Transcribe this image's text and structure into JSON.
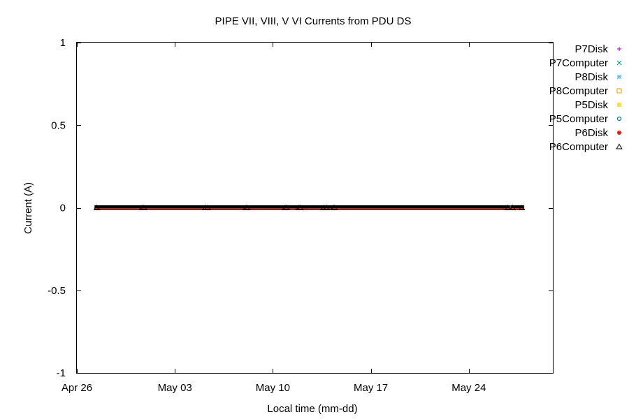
{
  "chart_data": {
    "type": "scatter",
    "title": "PIPE VII, VIII, V   VI Currents from PDU    DS",
    "xlabel": "Local time (mm-dd)",
    "ylabel": "Current (A)",
    "xlim": [
      "2015-04-26",
      "2015-05-30"
    ],
    "ylim": [
      -1,
      1
    ],
    "x_ticks": [
      {
        "date": "2015-04-26",
        "label": "Apr 26"
      },
      {
        "date": "2015-05-03",
        "label": "May 03"
      },
      {
        "date": "2015-05-10",
        "label": "May 10"
      },
      {
        "date": "2015-05-17",
        "label": "May 17"
      },
      {
        "date": "2015-05-24",
        "label": "May 24"
      }
    ],
    "y_ticks": [
      {
        "value": 1,
        "label": "1"
      },
      {
        "value": 0.5,
        "label": "0.5"
      },
      {
        "value": 0,
        "label": "0"
      },
      {
        "value": -0.5,
        "label": "-0.5"
      },
      {
        "value": -1,
        "label": "-1"
      }
    ],
    "grid": false,
    "legend_position": "top-right outside",
    "series": [
      {
        "name": "P7Disk",
        "color": "#9400d3",
        "marker": "plus",
        "x_segments": [
          [
            "2015-04-27T10:00",
            "2015-04-30T16:00"
          ],
          [
            "2015-04-30T19:00",
            "2015-05-05T04:00"
          ],
          [
            "2015-05-05T08:00",
            "2015-05-08T02:00"
          ],
          [
            "2015-05-08T04:00",
            "2015-05-10T21:00"
          ],
          [
            "2015-05-10T23:00",
            "2015-05-11T21:00"
          ],
          [
            "2015-05-11T23:00",
            "2015-05-13T15:00"
          ],
          [
            "2015-05-13T20:00",
            "2015-05-14T08:00"
          ],
          [
            "2015-05-14T10:00",
            "2015-05-26T19:00"
          ],
          [
            "2015-05-27T03:00",
            "2015-05-27T19:00"
          ]
        ],
        "y": 0
      },
      {
        "name": "P7Computer",
        "color": "#009e73",
        "marker": "cross",
        "x_segments": [
          [
            "2015-04-27T10:00",
            "2015-04-30T16:00"
          ],
          [
            "2015-04-30T19:00",
            "2015-05-05T04:00"
          ],
          [
            "2015-05-05T08:00",
            "2015-05-08T02:00"
          ],
          [
            "2015-05-08T04:00",
            "2015-05-10T21:00"
          ],
          [
            "2015-05-10T23:00",
            "2015-05-11T21:00"
          ],
          [
            "2015-05-11T23:00",
            "2015-05-13T15:00"
          ],
          [
            "2015-05-13T20:00",
            "2015-05-14T08:00"
          ],
          [
            "2015-05-14T10:00",
            "2015-05-26T19:00"
          ],
          [
            "2015-05-27T03:00",
            "2015-05-27T19:00"
          ]
        ],
        "y": 0
      },
      {
        "name": "P8Disk",
        "color": "#56b4e9",
        "marker": "star",
        "x_segments": [
          [
            "2015-04-27T10:00",
            "2015-04-30T16:00"
          ],
          [
            "2015-04-30T19:00",
            "2015-05-05T04:00"
          ],
          [
            "2015-05-05T08:00",
            "2015-05-08T02:00"
          ],
          [
            "2015-05-08T04:00",
            "2015-05-10T21:00"
          ],
          [
            "2015-05-10T23:00",
            "2015-05-11T21:00"
          ],
          [
            "2015-05-11T23:00",
            "2015-05-13T15:00"
          ],
          [
            "2015-05-13T20:00",
            "2015-05-14T08:00"
          ],
          [
            "2015-05-14T10:00",
            "2015-05-26T19:00"
          ],
          [
            "2015-05-27T03:00",
            "2015-05-27T19:00"
          ]
        ],
        "y": 0
      },
      {
        "name": "P8Computer",
        "color": "#e69f00",
        "marker": "square-open",
        "x_segments": [
          [
            "2015-04-27T10:00",
            "2015-04-30T16:00"
          ],
          [
            "2015-04-30T19:00",
            "2015-05-05T04:00"
          ],
          [
            "2015-05-05T08:00",
            "2015-05-08T02:00"
          ],
          [
            "2015-05-08T04:00",
            "2015-05-10T21:00"
          ],
          [
            "2015-05-10T23:00",
            "2015-05-11T21:00"
          ],
          [
            "2015-05-11T23:00",
            "2015-05-13T15:00"
          ],
          [
            "2015-05-13T20:00",
            "2015-05-14T08:00"
          ],
          [
            "2015-05-14T10:00",
            "2015-05-26T19:00"
          ],
          [
            "2015-05-27T03:00",
            "2015-05-27T19:00"
          ]
        ],
        "y": 0
      },
      {
        "name": "P5Disk",
        "color": "#f0e442",
        "marker": "square-filled",
        "x_segments": [
          [
            "2015-04-27T10:00",
            "2015-04-30T16:00"
          ],
          [
            "2015-04-30T19:00",
            "2015-05-05T04:00"
          ],
          [
            "2015-05-05T08:00",
            "2015-05-08T02:00"
          ],
          [
            "2015-05-08T04:00",
            "2015-05-10T21:00"
          ],
          [
            "2015-05-10T23:00",
            "2015-05-11T21:00"
          ],
          [
            "2015-05-11T23:00",
            "2015-05-13T15:00"
          ],
          [
            "2015-05-13T20:00",
            "2015-05-14T08:00"
          ],
          [
            "2015-05-14T10:00",
            "2015-05-26T19:00"
          ],
          [
            "2015-05-27T03:00",
            "2015-05-27T19:00"
          ]
        ],
        "y": 0
      },
      {
        "name": "P5Computer",
        "color": "#0072b2",
        "marker": "circle-open",
        "x_segments": [
          [
            "2015-04-27T10:00",
            "2015-04-30T16:00"
          ],
          [
            "2015-04-30T19:00",
            "2015-05-05T04:00"
          ],
          [
            "2015-05-05T08:00",
            "2015-05-08T02:00"
          ],
          [
            "2015-05-08T04:00",
            "2015-05-10T21:00"
          ],
          [
            "2015-05-10T23:00",
            "2015-05-11T21:00"
          ],
          [
            "2015-05-11T23:00",
            "2015-05-13T15:00"
          ],
          [
            "2015-05-13T20:00",
            "2015-05-14T08:00"
          ],
          [
            "2015-05-14T10:00",
            "2015-05-26T19:00"
          ],
          [
            "2015-05-27T03:00",
            "2015-05-27T19:00"
          ]
        ],
        "y": 0
      },
      {
        "name": "P6Disk",
        "color": "#e51e10",
        "marker": "circle-filled",
        "x_segments": [
          [
            "2015-04-27T10:00",
            "2015-04-30T16:00"
          ],
          [
            "2015-04-30T19:00",
            "2015-05-05T04:00"
          ],
          [
            "2015-05-05T08:00",
            "2015-05-08T02:00"
          ],
          [
            "2015-05-08T04:00",
            "2015-05-10T21:00"
          ],
          [
            "2015-05-10T23:00",
            "2015-05-11T21:00"
          ],
          [
            "2015-05-11T23:00",
            "2015-05-13T15:00"
          ],
          [
            "2015-05-13T20:00",
            "2015-05-14T08:00"
          ],
          [
            "2015-05-14T10:00",
            "2015-05-26T19:00"
          ],
          [
            "2015-05-27T03:00",
            "2015-05-27T19:00"
          ]
        ],
        "y": 0
      },
      {
        "name": "P6Computer",
        "color": "#000000",
        "marker": "triangle-open",
        "x_segments": [
          [
            "2015-04-27T10:00",
            "2015-04-30T16:00"
          ],
          [
            "2015-04-30T19:00",
            "2015-05-05T04:00"
          ],
          [
            "2015-05-05T08:00",
            "2015-05-08T02:00"
          ],
          [
            "2015-05-08T04:00",
            "2015-05-10T21:00"
          ],
          [
            "2015-05-10T23:00",
            "2015-05-11T21:00"
          ],
          [
            "2015-05-11T23:00",
            "2015-05-13T15:00"
          ],
          [
            "2015-05-13T20:00",
            "2015-05-14T08:00"
          ],
          [
            "2015-05-14T10:00",
            "2015-05-26T19:00"
          ],
          [
            "2015-05-27T03:00",
            "2015-05-27T19:00"
          ]
        ],
        "y": 0
      }
    ]
  }
}
